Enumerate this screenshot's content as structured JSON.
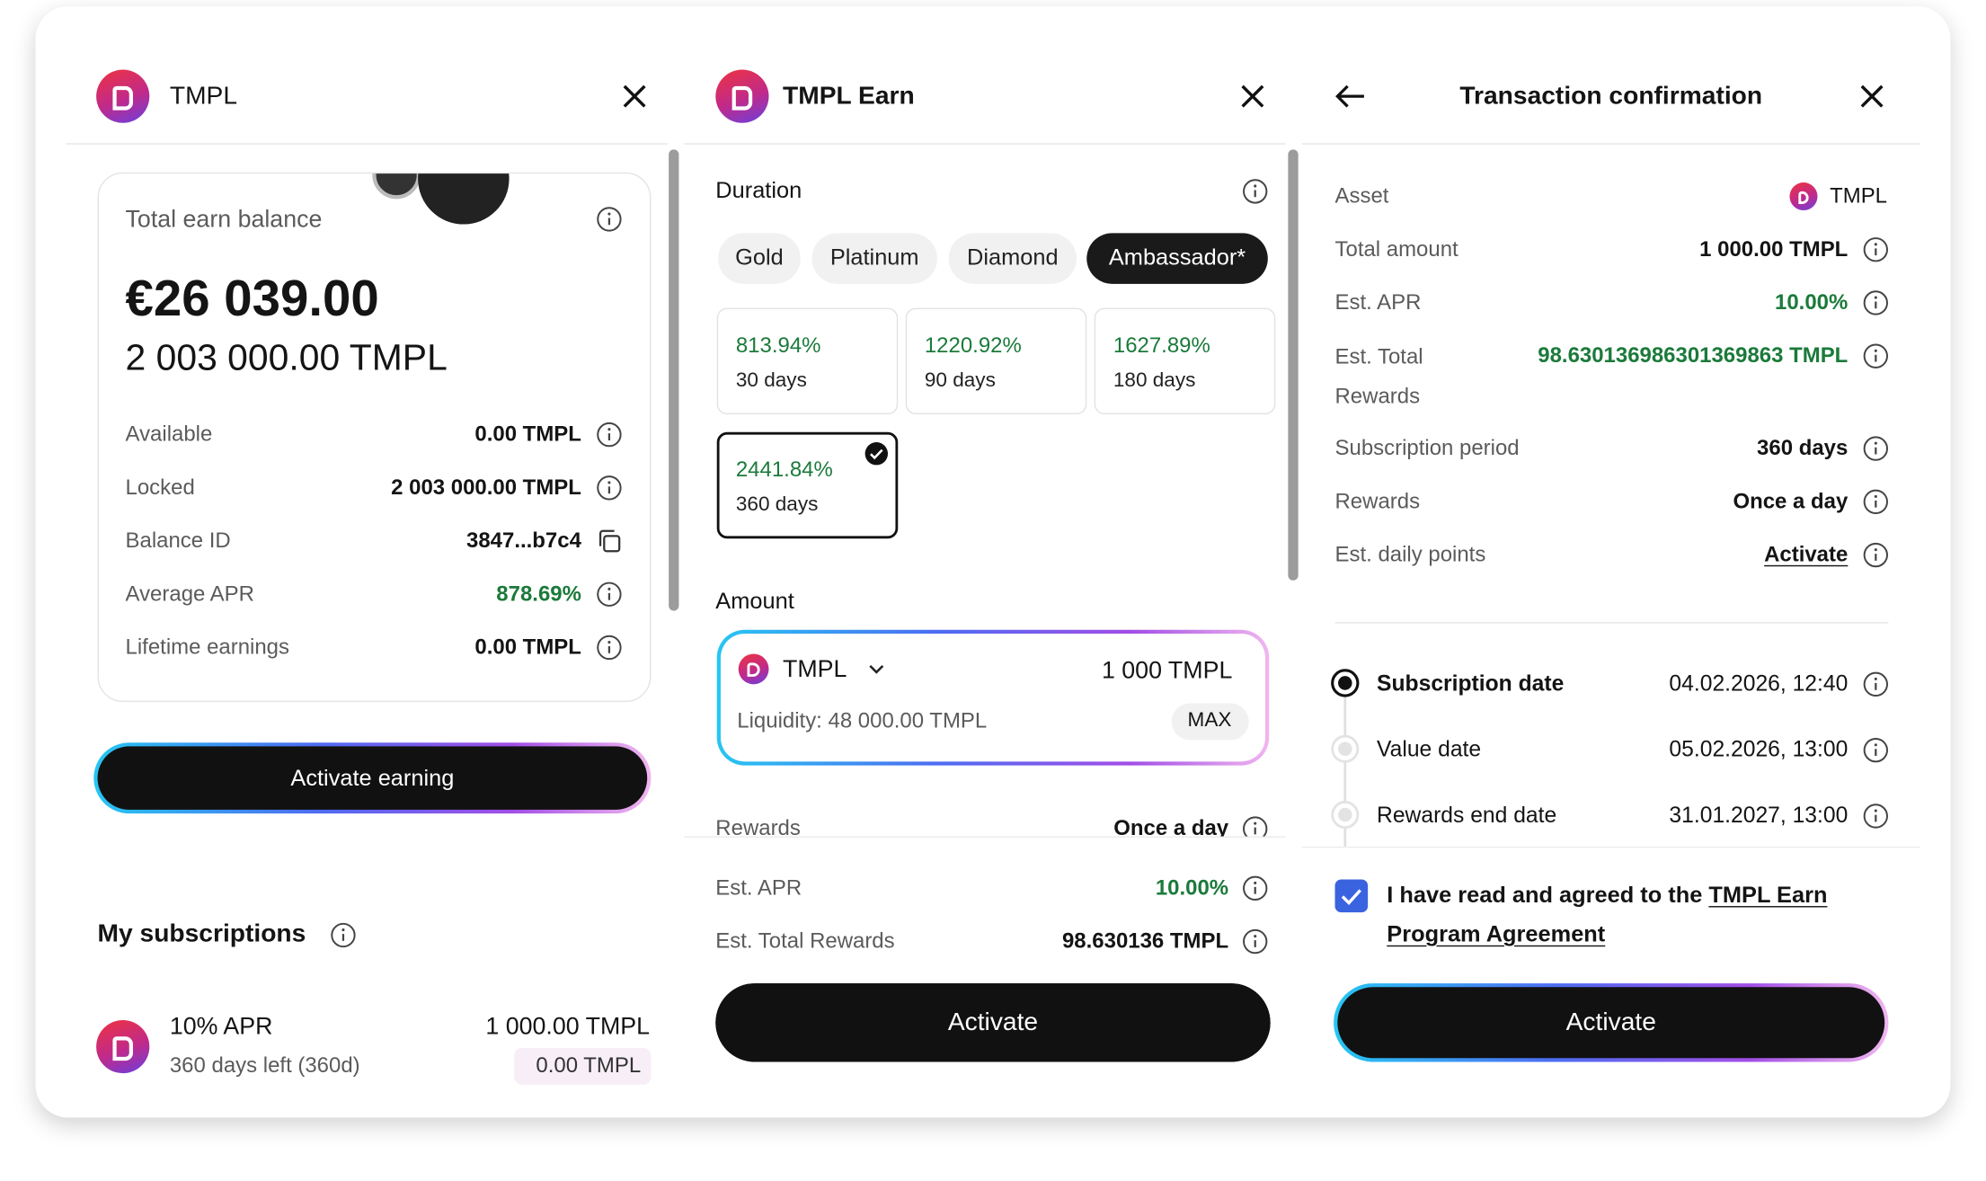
{
  "panels": [
    {
      "header": {
        "title": "TMPL"
      },
      "balance": {
        "label": "Total earn balance",
        "fiat": "€26 039.00",
        "amount": "2 003 000.00 TMPL",
        "rows": [
          {
            "label": "Available",
            "value": "0.00 TMPL"
          },
          {
            "label": "Locked",
            "value": "2 003 000.00 TMPL"
          },
          {
            "label": "Balance ID",
            "value": "3847...b7c4"
          },
          {
            "label": "Average APR",
            "value": "878.69%"
          },
          {
            "label": "Lifetime earnings",
            "value": "0.00 TMPL"
          }
        ]
      },
      "button": "Activate earning",
      "subscriptions": {
        "title": "My subscriptions",
        "items": [
          {
            "apr": "10% APR",
            "remaining": "360 days left (360d)",
            "amount": "1 000.00 TMPL",
            "earned": "0.00 TMPL"
          }
        ]
      }
    },
    {
      "header": {
        "title": "TMPL Earn"
      },
      "duration": {
        "label": "Duration",
        "tiers": [
          "Gold",
          "Platinum",
          "Diamond",
          "Ambassador*"
        ],
        "selected_tier": 3,
        "options": [
          {
            "apr": "813.94%",
            "period": "30 days"
          },
          {
            "apr": "1220.92%",
            "period": "90 days"
          },
          {
            "apr": "1627.89%",
            "period": "180 days"
          },
          {
            "apr": "2441.84%",
            "period": "360 days"
          }
        ],
        "selected_option": 3
      },
      "amount": {
        "label": "Amount",
        "asset": "TMPL",
        "value": "1 000 TMPL",
        "liquidity": "Liquidity: 48 000.00 TMPL",
        "max": "MAX"
      },
      "summary": [
        {
          "label": "Rewards",
          "value": "Once a day"
        },
        {
          "label": "Est. APR",
          "value": "10.00%"
        },
        {
          "label": "Est. Total Rewards",
          "value": "98.630136 TMPL"
        }
      ],
      "button": "Activate"
    },
    {
      "header": {
        "title": "Transaction confirmation"
      },
      "details": [
        {
          "label": "Asset",
          "value": "TMPL"
        },
        {
          "label": "Total amount",
          "value": "1 000.00 TMPL"
        },
        {
          "label": "Est. APR",
          "value": "10.00%"
        },
        {
          "label": "Est. Total Rewards",
          "value": "98.630136986301369863 TMPL"
        },
        {
          "label": "Subscription period",
          "value": "360 days"
        },
        {
          "label": "Rewards",
          "value": "Once a day"
        },
        {
          "label": "Est. daily points",
          "value": "Activate"
        }
      ],
      "timeline": [
        {
          "label": "Subscription date",
          "value": "04.02.2026, 12:40"
        },
        {
          "label": "Value date",
          "value": "05.02.2026, 13:00"
        },
        {
          "label": "Rewards end date",
          "value": "31.01.2027, 13:00"
        }
      ],
      "agreement": {
        "text": "I have read and agreed to the",
        "link": "TMPL Earn Program Agreement",
        "checked": true
      },
      "button": "Activate"
    }
  ]
}
